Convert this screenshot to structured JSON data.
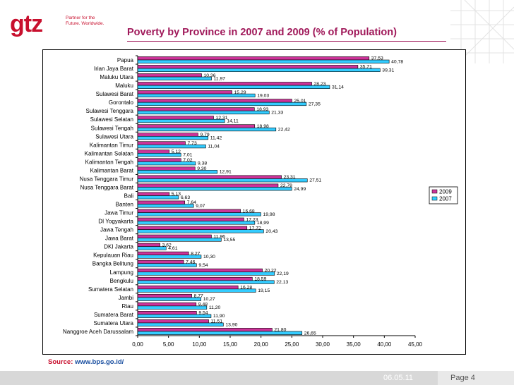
{
  "header": {
    "logo_text": "gtz",
    "logo_tagline": "Partner for the Future. Worldwide.",
    "title": "Poverty  by Province in 2007 and 2009  (% of Population)"
  },
  "footer": {
    "source_label": "Source:",
    "source_url": "www.bps.go.id/",
    "date": "06.05.11",
    "page": "Page 4"
  },
  "colors": {
    "s2009": "#cc3399",
    "s2007": "#33ccff",
    "accent": "#a0195a"
  },
  "chart_data": {
    "type": "bar",
    "orientation": "horizontal",
    "title": "Poverty  by Province in 2007 and 2009  (% of Population)",
    "categories": [
      "Papua",
      "Irian Jaya Barat",
      "Maluku Utara",
      "Maluku",
      "Sulawesi Barat",
      "Gorontalo",
      "Sulawesi Tenggara",
      "Sulawesi Selatan",
      "Sulawesi Tengah",
      "Sulawesi Utara",
      "Kalimantan Timur",
      "Kalimantan Selatan",
      "Kalimantan Tengah",
      "Kalimantan Barat",
      "Nusa Tenggara Timur",
      "Nusa Tenggara Barat",
      "Bali",
      "Banten",
      "Jawa Timur",
      "DI Yogyakarta",
      "Jawa Tengah",
      "Jawa Barat",
      "DKI Jakarta",
      "Kepulauan Riau",
      "Bangka Belitung",
      "Lampung",
      "Bengkulu",
      "Sumatera Selatan",
      "Jambi",
      "Riau",
      "Sumatera Barat",
      "Sumatera Utara",
      "Nanggroe Aceh Darussalam"
    ],
    "series": [
      {
        "name": "2009",
        "values": [
          37.53,
          35.71,
          10.36,
          28.23,
          15.29,
          25.01,
          18.93,
          12.31,
          18.98,
          9.79,
          7.73,
          5.12,
          7.02,
          9.3,
          23.31,
          22.78,
          5.13,
          7.64,
          16.68,
          17.23,
          17.72,
          11.96,
          3.62,
          8.27,
          7.46,
          20.22,
          18.59,
          16.28,
          8.77,
          9.48,
          9.54,
          11.51,
          21.8
        ],
        "labels": [
          "37,53",
          "35,71",
          "10,36",
          "28,23",
          "15,29",
          "25,01",
          "18,93",
          "12,31",
          "18,98",
          "9,79",
          "7,73",
          "5,12",
          "7,02",
          "9,30",
          "23,31",
          "22,78",
          "5,13",
          "7,64",
          "16,68",
          "17,23",
          "17,72",
          "11,96",
          "3,62",
          "8,27",
          "7,46",
          "20,22",
          "18,59",
          "16,28",
          "8,77",
          "9,48",
          "9,54",
          "11,51",
          "21,80"
        ]
      },
      {
        "name": "2007",
        "values": [
          40.78,
          39.31,
          11.97,
          31.14,
          19.03,
          27.35,
          21.33,
          14.11,
          22.42,
          11.42,
          11.04,
          7.01,
          9.38,
          12.91,
          27.51,
          24.99,
          6.63,
          9.07,
          19.98,
          18.99,
          20.43,
          13.55,
          4.61,
          10.3,
          9.54,
          22.19,
          22.13,
          19.15,
          10.27,
          11.2,
          11.9,
          13.9,
          26.65
        ],
        "labels": [
          "40,78",
          "39,31",
          "11,97",
          "31,14",
          "19,03",
          "27,35",
          "21,33",
          "14,11",
          "22,42",
          "11,42",
          "11,04",
          "7,01",
          "9,38",
          "12,91",
          "27,51",
          "24,99",
          "6,63",
          "9,07",
          "19,98",
          "18,99",
          "20,43",
          "13,55",
          "4,61",
          "10,30",
          "9,54",
          "22,19",
          "22,13",
          "19,15",
          "10,27",
          "11,20",
          "11,90",
          "13,90",
          "26,65"
        ]
      }
    ],
    "x_ticks": [
      "0,00",
      "5,00",
      "10,00",
      "15,00",
      "20,00",
      "25,00",
      "30,00",
      "35,00",
      "40,00",
      "45,00"
    ],
    "xlim": [
      0,
      45
    ],
    "legend": [
      "2009",
      "2007"
    ],
    "legend_position": "right"
  }
}
